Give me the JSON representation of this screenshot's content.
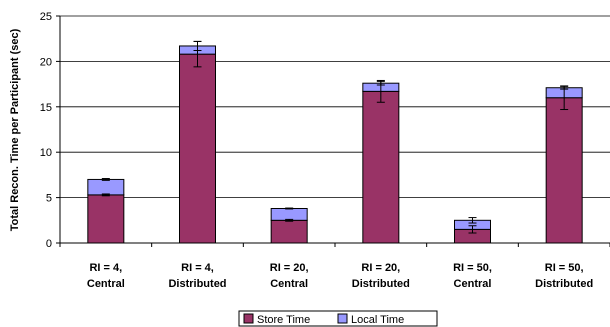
{
  "chart_data": {
    "type": "bar",
    "stacked": true,
    "ylabel": "Total Recon. Time per Participant (sec)",
    "xlabel": "",
    "ylim": [
      0,
      25
    ],
    "yticks": [
      0,
      5,
      10,
      15,
      20,
      25
    ],
    "grid": true,
    "legend_position": "bottom",
    "categories": [
      [
        "RI = 4,",
        "Central"
      ],
      [
        "RI = 4,",
        "Distributed"
      ],
      [
        "RI = 20,",
        "Central"
      ],
      [
        "RI = 20,",
        "Distributed"
      ],
      [
        "RI = 50,",
        "Central"
      ],
      [
        "RI = 50,",
        "Distributed"
      ]
    ],
    "series": [
      {
        "name": "Store Time",
        "color": "#993366",
        "values": [
          5.3,
          20.8,
          2.5,
          16.7,
          1.5,
          16.0
        ],
        "error": [
          0.1,
          1.4,
          0.1,
          1.2,
          0.4,
          1.3
        ]
      },
      {
        "name": "Local Time",
        "color": "#9999ff",
        "values": [
          1.7,
          0.9,
          1.3,
          0.9,
          1.0,
          1.1
        ],
        "error": [
          0.1,
          0.5,
          0.05,
          0.2,
          0.3,
          0.15
        ]
      }
    ]
  }
}
